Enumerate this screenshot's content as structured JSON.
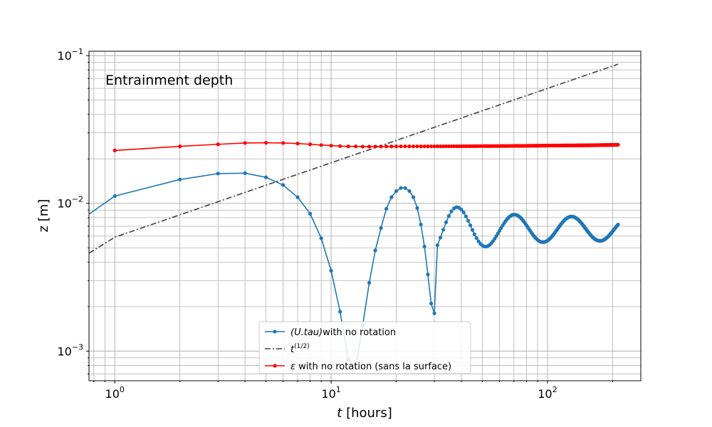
{
  "chart_data": {
    "type": "line",
    "title": "",
    "annotation": "Entrainment depth",
    "xlabel": {
      "prefix": "t",
      "suffix": " [hours]"
    },
    "ylabel": "z [m]",
    "xscale": "log",
    "yscale": "log",
    "xlim": [
      0.76,
      270
    ],
    "ylim": [
      0.00063,
      0.107
    ],
    "grid": {
      "major": true,
      "minor": true
    },
    "x_ticks": [
      {
        "value": 1,
        "base": "10",
        "exp": "0"
      },
      {
        "value": 10,
        "base": "10",
        "exp": "1"
      },
      {
        "value": 100,
        "base": "10",
        "exp": "2"
      }
    ],
    "y_ticks": [
      {
        "value": 0.001,
        "base": "10",
        "exp": "−3"
      },
      {
        "value": 0.01,
        "base": "10",
        "exp": "−2"
      },
      {
        "value": 0.1,
        "base": "10",
        "exp": "−1"
      }
    ],
    "legend": {
      "placement": "bottom-center"
    },
    "series": [
      {
        "name": "(U.tau)with no rotation",
        "legend_parts": {
          "math": "(U.tau)",
          "rest": "with no rotation"
        },
        "color": "#1f77b4",
        "marker": "dot",
        "style": "solid",
        "oscillation": {
          "mean": 0.0067,
          "amp_x": [
            2,
            20,
            40,
            60,
            80,
            100,
            150,
            212
          ],
          "amp_y": [
            0.0118,
            0.011,
            0.0093,
            0.0085,
            0.0083,
            0.0082,
            0.0081,
            0.008
          ],
          "period": 17.5,
          "phase_t": 21,
          "t_end": 212,
          "step": 1,
          "envelope_sharpness": 1.0
        },
        "early": [
          [
            0.5,
            0.0055
          ],
          [
            1,
            0.0112
          ],
          [
            2,
            0.0145
          ],
          [
            3,
            0.0159
          ],
          [
            4,
            0.016
          ],
          [
            5,
            0.015
          ],
          [
            6,
            0.0133
          ],
          [
            7,
            0.011
          ],
          [
            8,
            0.0085
          ],
          [
            9,
            0.0058
          ],
          [
            10,
            0.0035
          ],
          [
            11,
            0.00185
          ],
          [
            12,
            0.00088
          ],
          [
            13,
            0.00078
          ],
          [
            14,
            0.0015
          ],
          [
            15,
            0.0029
          ],
          [
            16,
            0.0048
          ],
          [
            17,
            0.0068
          ],
          [
            18,
            0.0092
          ],
          [
            19,
            0.011
          ],
          [
            20,
            0.0121
          ],
          [
            21,
            0.0127
          ],
          [
            22,
            0.0127
          ],
          [
            23,
            0.0121
          ],
          [
            24,
            0.011
          ],
          [
            25,
            0.0093
          ],
          [
            26,
            0.0072
          ],
          [
            27,
            0.0051
          ],
          [
            28,
            0.0033
          ],
          [
            29,
            0.0021
          ],
          [
            30,
            0.0018
          ]
        ]
      },
      {
        "name": "t^(1/2)",
        "legend_parts": {
          "base": "t",
          "sup": "(1/2)"
        },
        "color": "#404040",
        "style": "dashdot",
        "points": [
          [
            0.76,
            0.0046
          ],
          [
            1,
            0.0059
          ],
          [
            212,
            0.0875
          ]
        ]
      },
      {
        "name": "ε with  no rotation (sans la surface)",
        "legend_parts": {
          "math": "ε",
          "rest": " with  no rotation (sans la surface)"
        },
        "color": "#ff0000",
        "marker": "dot",
        "style": "solid",
        "points": [
          [
            1,
            0.0228
          ],
          [
            2,
            0.0243
          ],
          [
            3,
            0.0251
          ],
          [
            4,
            0.0256
          ],
          [
            5,
            0.0257
          ],
          [
            6,
            0.0256
          ],
          [
            7,
            0.0254
          ],
          [
            8,
            0.0251
          ],
          [
            9,
            0.0248
          ],
          [
            10,
            0.0246
          ],
          [
            11,
            0.0244
          ],
          [
            12,
            0.0243
          ],
          [
            13,
            0.0243
          ],
          [
            14,
            0.0242
          ],
          [
            15,
            0.0242
          ],
          [
            20,
            0.0243
          ],
          [
            30,
            0.0243
          ],
          [
            50,
            0.0244
          ],
          [
            80,
            0.0245
          ],
          [
            100,
            0.0246
          ],
          [
            150,
            0.0247
          ],
          [
            212,
            0.0249
          ]
        ],
        "dense_from": 15,
        "dense_to": 212
      }
    ]
  }
}
